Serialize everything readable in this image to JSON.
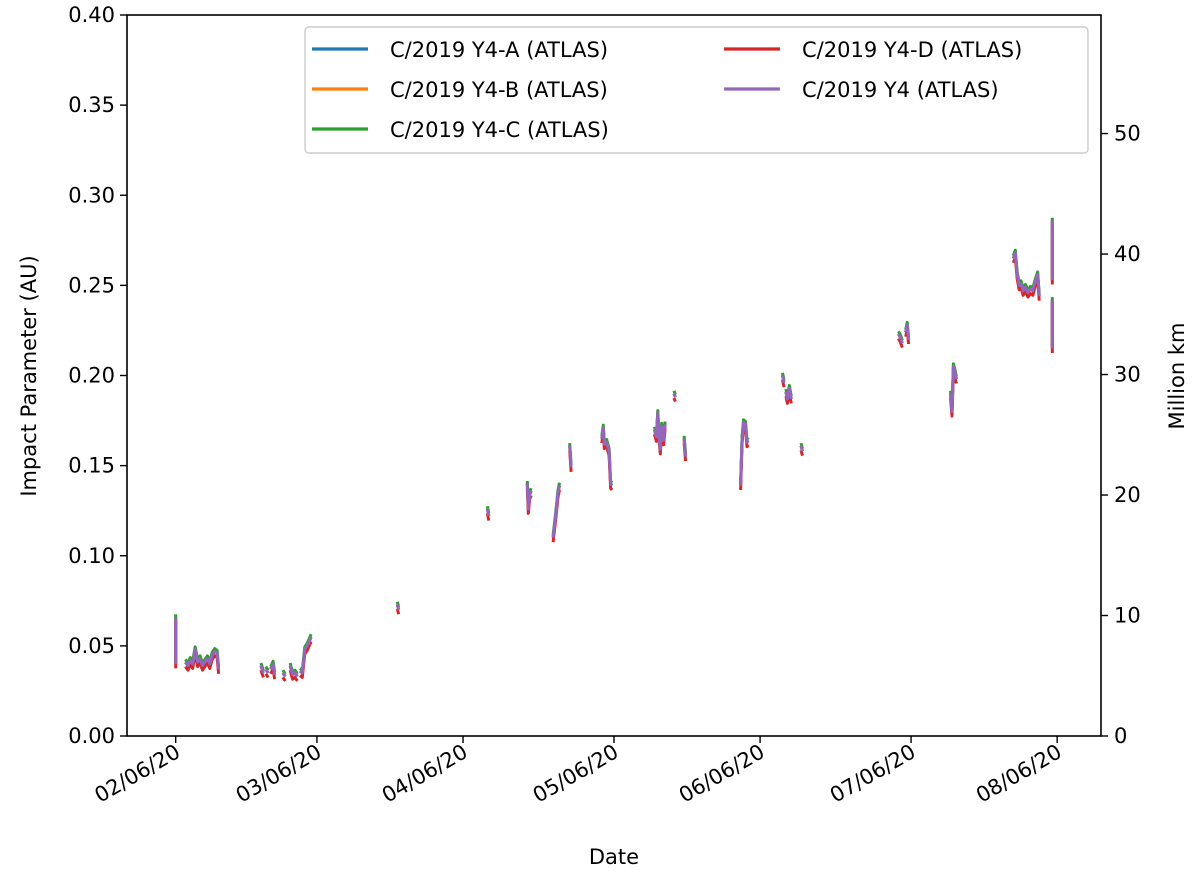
{
  "chart_data": {
    "type": "line",
    "title": "",
    "xlabel": "Date",
    "ylabel": "Impact Parameter (AU)",
    "y2label": "Million km",
    "ylim": [
      0,
      0.4
    ],
    "y2lim": [
      0,
      59.84
    ],
    "yticks": [
      "0.00",
      "0.05",
      "0.10",
      "0.15",
      "0.20",
      "0.25",
      "0.30",
      "0.35",
      "0.40"
    ],
    "y2ticks": [
      "0",
      "10",
      "20",
      "30",
      "40",
      "50"
    ],
    "xtick_days": [
      0,
      29,
      59,
      90,
      120,
      151,
      181
    ],
    "xtick_labels": [
      "02/06/20",
      "03/06/20",
      "04/06/20",
      "05/06/20",
      "06/06/20",
      "07/06/20",
      "08/06/20"
    ],
    "xlim": [
      -10,
      190
    ],
    "legend_position": "top-right",
    "series": [
      {
        "name": "C/2019 Y4-A (ATLAS)",
        "color": "#1f77b4",
        "offset": 0.0
      },
      {
        "name": "C/2019 Y4-B (ATLAS)",
        "color": "#ff7f0e",
        "offset": 0.0
      },
      {
        "name": "C/2019 Y4-C (ATLAS)",
        "color": "#2ca02c",
        "offset": 0.0015
      },
      {
        "name": "C/2019 Y4-D (ATLAS)",
        "color": "#d62728",
        "offset": -0.0025
      },
      {
        "name": "C/2019 Y4 (ATLAS)",
        "color": "#9467bd",
        "offset": 0.0
      }
    ],
    "segments": [
      [
        [
          0.0,
          0.066
        ],
        [
          0.0,
          0.04
        ]
      ],
      [
        [
          2.0,
          0.041
        ],
        [
          2.5,
          0.039
        ],
        [
          3.0,
          0.042
        ],
        [
          3.5,
          0.04
        ],
        [
          4.0,
          0.048
        ],
        [
          4.5,
          0.041
        ],
        [
          5.0,
          0.043
        ],
        [
          5.5,
          0.039
        ],
        [
          6.0,
          0.041
        ],
        [
          6.5,
          0.043
        ],
        [
          7.0,
          0.04
        ],
        [
          7.5,
          0.045
        ],
        [
          8.0,
          0.047
        ],
        [
          8.5,
          0.046
        ],
        [
          8.8,
          0.037
        ]
      ],
      [
        [
          17.5,
          0.039
        ],
        [
          18.0,
          0.035
        ]
      ],
      [
        [
          18.5,
          0.037
        ],
        [
          19.0,
          0.035
        ]
      ],
      [
        [
          19.5,
          0.037
        ],
        [
          20.0,
          0.04
        ],
        [
          20.3,
          0.034
        ]
      ],
      [
        [
          22.0,
          0.035
        ],
        [
          22.5,
          0.033
        ]
      ],
      [
        [
          23.5,
          0.039
        ],
        [
          24.0,
          0.034
        ],
        [
          24.5,
          0.035
        ],
        [
          25.0,
          0.033
        ]
      ],
      [
        [
          25.5,
          0.036
        ],
        [
          26.0,
          0.035
        ],
        [
          26.5,
          0.048
        ],
        [
          27.0,
          0.05
        ],
        [
          27.5,
          0.053
        ],
        [
          27.8,
          0.055
        ]
      ],
      [
        [
          45.5,
          0.073
        ],
        [
          45.8,
          0.07
        ]
      ],
      [
        [
          64.0,
          0.126
        ],
        [
          64.3,
          0.122
        ]
      ],
      [
        [
          72.2,
          0.14
        ],
        [
          72.4,
          0.126
        ],
        [
          72.7,
          0.134
        ],
        [
          73.0,
          0.136
        ]
      ],
      [
        [
          77.5,
          0.11
        ],
        [
          78.0,
          0.122
        ],
        [
          78.5,
          0.135
        ],
        [
          78.8,
          0.139
        ]
      ],
      [
        [
          80.9,
          0.161
        ],
        [
          81.2,
          0.149
        ]
      ],
      [
        [
          87.5,
          0.165
        ],
        [
          87.8,
          0.171
        ],
        [
          88.0,
          0.162
        ],
        [
          88.5,
          0.163
        ],
        [
          89.0,
          0.158
        ],
        [
          89.3,
          0.14
        ],
        [
          89.6,
          0.139
        ]
      ],
      [
        [
          98.3,
          0.17
        ],
        [
          98.7,
          0.166
        ],
        [
          99.0,
          0.179
        ],
        [
          99.2,
          0.168
        ],
        [
          99.5,
          0.159
        ],
        [
          99.8,
          0.172
        ],
        [
          100.2,
          0.164
        ],
        [
          100.5,
          0.173
        ]
      ],
      [
        [
          102.3,
          0.19
        ],
        [
          102.6,
          0.188
        ]
      ],
      [
        [
          104.4,
          0.165
        ],
        [
          104.7,
          0.155
        ]
      ],
      [
        [
          116.0,
          0.139
        ],
        [
          116.3,
          0.165
        ],
        [
          116.6,
          0.174
        ],
        [
          117.0,
          0.173
        ],
        [
          117.3,
          0.163
        ],
        [
          117.6,
          0.164
        ]
      ],
      [
        [
          124.6,
          0.2
        ],
        [
          124.9,
          0.196
        ]
      ],
      [
        [
          125.3,
          0.191
        ],
        [
          125.6,
          0.187
        ],
        [
          126.0,
          0.193
        ],
        [
          126.4,
          0.187
        ]
      ],
      [
        [
          128.4,
          0.161
        ],
        [
          128.7,
          0.158
        ]
      ],
      [
        [
          148.4,
          0.223
        ],
        [
          148.8,
          0.221
        ],
        [
          149.2,
          0.218
        ]
      ],
      [
        [
          149.9,
          0.224
        ],
        [
          150.2,
          0.228
        ],
        [
          150.5,
          0.22
        ]
      ],
      [
        [
          159.1,
          0.19
        ],
        [
          159.4,
          0.18
        ],
        [
          159.7,
          0.205
        ],
        [
          160.0,
          0.202
        ],
        [
          160.3,
          0.198
        ]
      ],
      [
        [
          172.0,
          0.265
        ],
        [
          172.4,
          0.268
        ],
        [
          172.8,
          0.256
        ],
        [
          173.2,
          0.25
        ],
        [
          173.6,
          0.251
        ],
        [
          174.0,
          0.247
        ],
        [
          174.5,
          0.249
        ],
        [
          175.0,
          0.246
        ],
        [
          175.5,
          0.248
        ],
        [
          176.0,
          0.247
        ],
        [
          176.5,
          0.252
        ],
        [
          177.0,
          0.256
        ],
        [
          177.3,
          0.244
        ]
      ],
      [
        [
          180.0,
          0.286
        ],
        [
          180.0,
          0.253
        ]
      ],
      [
        [
          180.0,
          0.242
        ],
        [
          180.0,
          0.215
        ]
      ]
    ]
  }
}
